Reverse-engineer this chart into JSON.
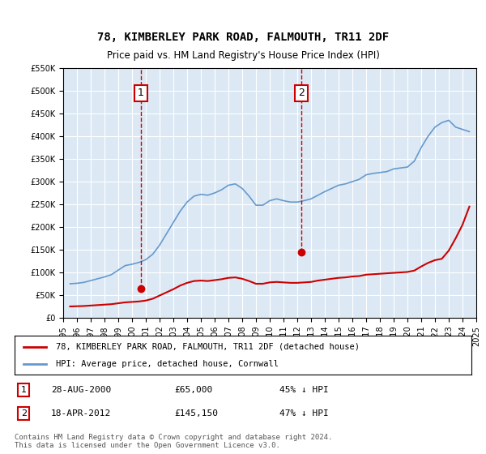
{
  "title": "78, KIMBERLEY PARK ROAD, FALMOUTH, TR11 2DF",
  "subtitle": "Price paid vs. HM Land Registry's House Price Index (HPI)",
  "legend_line1": "78, KIMBERLEY PARK ROAD, FALMOUTH, TR11 2DF (detached house)",
  "legend_line2": "HPI: Average price, detached house, Cornwall",
  "footnote": "Contains HM Land Registry data © Crown copyright and database right 2024.\nThis data is licensed under the Open Government Licence v3.0.",
  "table_rows": [
    {
      "num": "1",
      "date": "28-AUG-2000",
      "price": "£65,000",
      "hpi": "45% ↓ HPI"
    },
    {
      "num": "2",
      "date": "18-APR-2012",
      "price": "£145,150",
      "hpi": "47% ↓ HPI"
    }
  ],
  "sale1_year": 2000.65,
  "sale1_price": 65000,
  "sale2_year": 2012.3,
  "sale2_price": 145150,
  "ylim": [
    0,
    550000
  ],
  "xlim": [
    1995,
    2025
  ],
  "plot_bg": "#dce9f5",
  "fig_bg": "#ffffff",
  "line_red": "#cc0000",
  "line_blue": "#6699cc",
  "marker_color_red": "#cc0000",
  "dashed_color": "#cc0000",
  "hpi_data": {
    "years": [
      1995.5,
      1996.0,
      1996.5,
      1997.0,
      1997.5,
      1998.0,
      1998.5,
      1999.0,
      1999.5,
      2000.0,
      2000.5,
      2001.0,
      2001.5,
      2002.0,
      2002.5,
      2003.0,
      2003.5,
      2004.0,
      2004.5,
      2005.0,
      2005.5,
      2006.0,
      2006.5,
      2007.0,
      2007.5,
      2008.0,
      2008.5,
      2009.0,
      2009.5,
      2010.0,
      2010.5,
      2011.0,
      2011.5,
      2012.0,
      2012.5,
      2013.0,
      2013.5,
      2014.0,
      2014.5,
      2015.0,
      2015.5,
      2016.0,
      2016.5,
      2017.0,
      2017.5,
      2018.0,
      2018.5,
      2019.0,
      2019.5,
      2020.0,
      2020.5,
      2021.0,
      2021.5,
      2022.0,
      2022.5,
      2023.0,
      2023.5,
      2024.0,
      2024.5
    ],
    "values": [
      75000,
      76000,
      78000,
      82000,
      86000,
      90000,
      95000,
      105000,
      115000,
      118000,
      122000,
      128000,
      140000,
      160000,
      185000,
      210000,
      235000,
      255000,
      268000,
      272000,
      270000,
      275000,
      282000,
      292000,
      295000,
      285000,
      268000,
      248000,
      248000,
      258000,
      262000,
      258000,
      255000,
      255000,
      258000,
      262000,
      270000,
      278000,
      285000,
      292000,
      295000,
      300000,
      305000,
      315000,
      318000,
      320000,
      322000,
      328000,
      330000,
      332000,
      345000,
      375000,
      400000,
      420000,
      430000,
      435000,
      420000,
      415000,
      410000
    ]
  },
  "prop_data": {
    "years": [
      1995.5,
      1996.0,
      1996.5,
      1997.0,
      1997.5,
      1998.0,
      1998.5,
      1999.0,
      1999.5,
      2000.0,
      2000.5,
      2001.0,
      2001.5,
      2002.0,
      2002.5,
      2003.0,
      2003.5,
      2004.0,
      2004.5,
      2005.0,
      2005.5,
      2006.0,
      2006.5,
      2007.0,
      2007.5,
      2008.0,
      2008.5,
      2009.0,
      2009.5,
      2010.0,
      2010.5,
      2011.0,
      2011.5,
      2012.0,
      2012.5,
      2013.0,
      2013.5,
      2014.0,
      2014.5,
      2015.0,
      2015.5,
      2016.0,
      2016.5,
      2017.0,
      2017.5,
      2018.0,
      2018.5,
      2019.0,
      2019.5,
      2020.0,
      2020.5,
      2021.0,
      2021.5,
      2022.0,
      2022.5,
      2023.0,
      2023.5,
      2024.0,
      2024.5
    ],
    "values": [
      25000,
      25500,
      26000,
      27000,
      28000,
      29000,
      30000,
      32000,
      34000,
      35000,
      36000,
      38000,
      42000,
      49000,
      56000,
      63000,
      71000,
      77000,
      81000,
      82000,
      81000,
      83000,
      85000,
      88000,
      89000,
      86000,
      81000,
      75000,
      75000,
      78000,
      79000,
      78000,
      77000,
      77000,
      78000,
      79000,
      82000,
      84000,
      86000,
      88000,
      89000,
      91000,
      92000,
      95000,
      96000,
      97000,
      98000,
      99000,
      100000,
      101000,
      104000,
      113000,
      121000,
      127000,
      130000,
      148000,
      175000,
      205000,
      245000
    ]
  }
}
